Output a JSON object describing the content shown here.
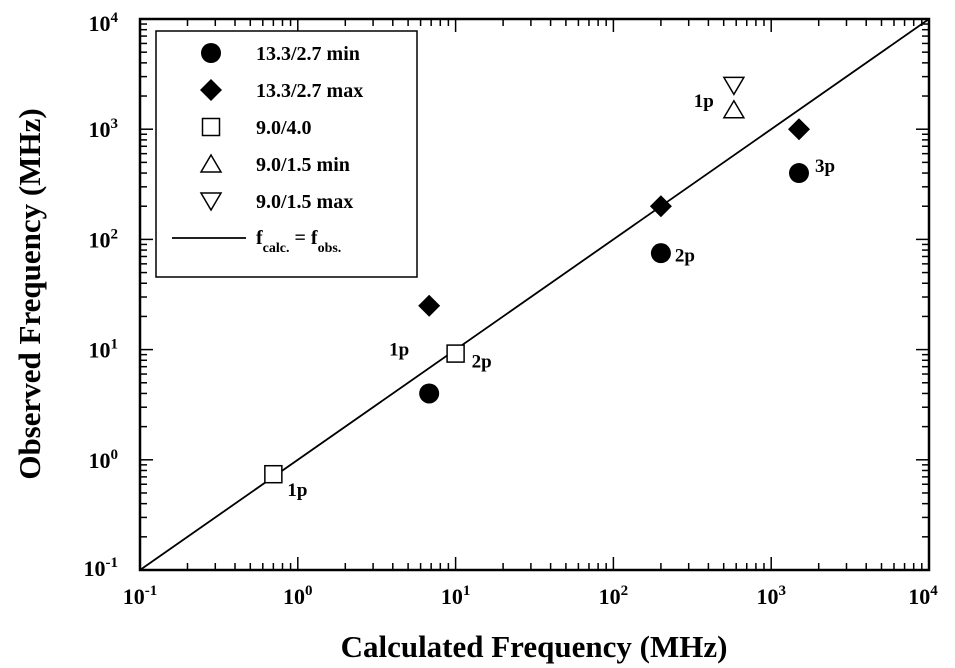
{
  "chart_data": {
    "type": "scatter",
    "xlabel": "Calculated Frequency (MHz)",
    "ylabel": "Observed Frequency (MHz)",
    "x_scale": "log",
    "y_scale": "log",
    "xlim": [
      0.1,
      10000
    ],
    "ylim": [
      0.1,
      10000
    ],
    "x_ticks": [
      {
        "value": 0.1,
        "base": "10",
        "exp": "-1"
      },
      {
        "value": 1,
        "base": "10",
        "exp": "0"
      },
      {
        "value": 10,
        "base": "10",
        "exp": "1"
      },
      {
        "value": 100,
        "base": "10",
        "exp": "2"
      },
      {
        "value": 1000,
        "base": "10",
        "exp": "3"
      },
      {
        "value": 10000,
        "base": "10",
        "exp": "4"
      }
    ],
    "y_ticks": [
      {
        "value": 0.1,
        "base": "10",
        "exp": "-1"
      },
      {
        "value": 1,
        "base": "10",
        "exp": "0"
      },
      {
        "value": 10,
        "base": "10",
        "exp": "1"
      },
      {
        "value": 100,
        "base": "10",
        "exp": "2"
      },
      {
        "value": 1000,
        "base": "10",
        "exp": "3"
      },
      {
        "value": 10000,
        "base": "10",
        "exp": "4"
      }
    ],
    "legend_position": "top-left",
    "series": [
      {
        "name": "13.3/2.7 min",
        "marker": "circle-filled",
        "points": [
          [
            6.8,
            4
          ],
          [
            200,
            75
          ],
          [
            1500,
            400
          ]
        ]
      },
      {
        "name": "13.3/2.7 max",
        "marker": "diamond-filled",
        "points": [
          [
            6.8,
            25
          ],
          [
            200,
            200
          ],
          [
            1500,
            1000
          ]
        ]
      },
      {
        "name": "9.0/4.0",
        "marker": "square-open",
        "points": [
          [
            0.7,
            0.74
          ],
          [
            10,
            9.2
          ]
        ]
      },
      {
        "name": "9.0/1.5 min",
        "marker": "triangle-up-open",
        "points": [
          [
            580,
            1500
          ]
        ]
      },
      {
        "name": "9.0/1.5 max",
        "marker": "triangle-down-open",
        "points": [
          [
            580,
            2500
          ]
        ]
      }
    ],
    "reference_line": {
      "label_main": "f",
      "label_sub1": "calc.",
      "label_eq": " = f",
      "label_sub2": "obs.",
      "points": [
        [
          0.1,
          0.1
        ],
        [
          10000,
          10000
        ]
      ]
    },
    "annotations": [
      {
        "text": "1p",
        "x": 0.7,
        "y": 0.74,
        "anchor": "right-below"
      },
      {
        "text": "1p",
        "x": 6.8,
        "y": 10,
        "anchor": "left"
      },
      {
        "text": "2p",
        "x": 10,
        "y": 9.2,
        "anchor": "right"
      },
      {
        "text": "2p",
        "x": 200,
        "y": 100,
        "anchor": "right-below"
      },
      {
        "text": "3p",
        "x": 1500,
        "y": 550,
        "anchor": "right"
      },
      {
        "text": "1p",
        "x": 580,
        "y": 1800,
        "anchor": "left"
      }
    ]
  }
}
